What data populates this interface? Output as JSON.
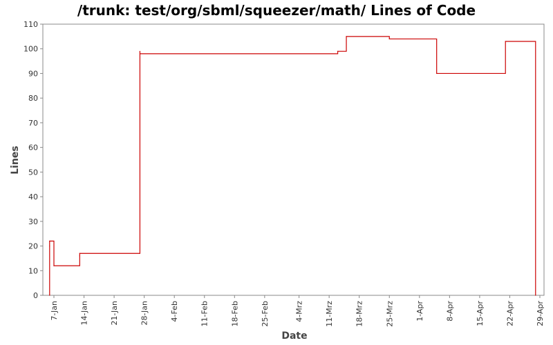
{
  "chart_data": {
    "type": "line",
    "title": "/trunk: test/org/sbml/squeezer/math/ Lines of Code",
    "xlabel": "Date",
    "ylabel": "Lines",
    "ylim": [
      0,
      110
    ],
    "y_ticks": [
      0,
      10,
      20,
      30,
      40,
      50,
      60,
      70,
      80,
      90,
      100,
      110
    ],
    "x_ticks": [
      "7-Jan",
      "14-Jan",
      "21-Jan",
      "28-Jan",
      "4-Feb",
      "11-Feb",
      "18-Feb",
      "25-Feb",
      "4-Mrz",
      "11-Mrz",
      "18-Mrz",
      "25-Mrz",
      "1-Apr",
      "8-Apr",
      "15-Apr",
      "22-Apr",
      "29-Apr"
    ],
    "grid": false,
    "series_color": "#cc0000",
    "series": [
      {
        "step": true,
        "points": [
          {
            "x": "6-Jan",
            "y": 0
          },
          {
            "x": "6-Jan",
            "y": 20
          },
          {
            "x": "6-Jan",
            "y": 22
          },
          {
            "x": "7-Jan",
            "y": 12
          },
          {
            "x": "13-Jan",
            "y": 16
          },
          {
            "x": "13-Jan",
            "y": 17
          },
          {
            "x": "27-Jan",
            "y": 99
          },
          {
            "x": "27-Jan",
            "y": 98
          },
          {
            "x": "13-Mrz",
            "y": 99
          },
          {
            "x": "15-Mrz",
            "y": 105
          },
          {
            "x": "25-Mrz",
            "y": 104
          },
          {
            "x": "5-Apr",
            "y": 90
          },
          {
            "x": "21-Apr",
            "y": 103
          },
          {
            "x": "28-Apr",
            "y": 0
          }
        ]
      }
    ]
  }
}
